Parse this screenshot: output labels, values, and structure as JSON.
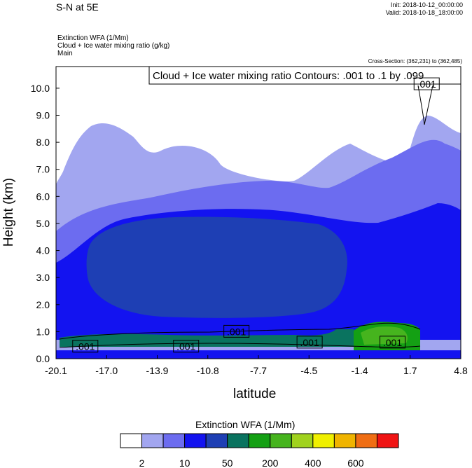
{
  "header": {
    "title": "S-N at 5E",
    "init": "Init: 2018-10-12_00:00:00",
    "valid": "Valid: 2018-10-18_18:00:00",
    "field1": "Extinction WFA   (1/Mm)",
    "field2": "Cloud + Ice water mixing ratio   (g/kg)",
    "field3": "Main",
    "cross_section": "Cross-Section: (362,231) to (362,485)"
  },
  "chart_data": {
    "type": "heatmap",
    "title": "S-N at 5E",
    "xlabel": "latitude",
    "ylabel": "Height (km)",
    "xlim": [
      -20.1,
      4.8
    ],
    "ylim": [
      0.0,
      10.8
    ],
    "x_ticks": [
      "-20.1",
      "-17.0",
      "-13.9",
      "-10.8",
      "-7.7",
      "-4.5",
      "-1.4",
      "1.7",
      "4.8"
    ],
    "y_ticks": [
      "0.0",
      "1.0",
      "2.0",
      "3.0",
      "4.0",
      "5.0",
      "6.0",
      "7.0",
      "8.0",
      "9.0",
      "10.0"
    ],
    "contour_legend": "Cloud + Ice water mixing ratio Contours: .001 to .1 by .099",
    "contour_labels": [
      {
        "text": ".001",
        "x": -18.3,
        "y": 0.45
      },
      {
        "text": ".001",
        "x": -12.1,
        "y": 0.45
      },
      {
        "text": ".001",
        "x": -9.0,
        "y": 1.0
      },
      {
        "text": ".001",
        "x": -4.5,
        "y": 0.6
      },
      {
        "text": ".001",
        "x": 0.6,
        "y": 0.6
      },
      {
        "text": ".001",
        "x": 2.7,
        "y": 10.15
      }
    ],
    "colorbar": {
      "title": "Extinction WFA  (1/Mm)",
      "colors": [
        "#ffffff",
        "#a2a6f0",
        "#6c6cf0",
        "#1313f0",
        "#1e3fb4",
        "#0a735f",
        "#14a014",
        "#46b41e",
        "#a0d21e",
        "#f0f000",
        "#f0b400",
        "#f06e14",
        "#f01414"
      ],
      "labels": [
        "2",
        "10",
        "50",
        "200",
        "400",
        "600"
      ]
    }
  }
}
